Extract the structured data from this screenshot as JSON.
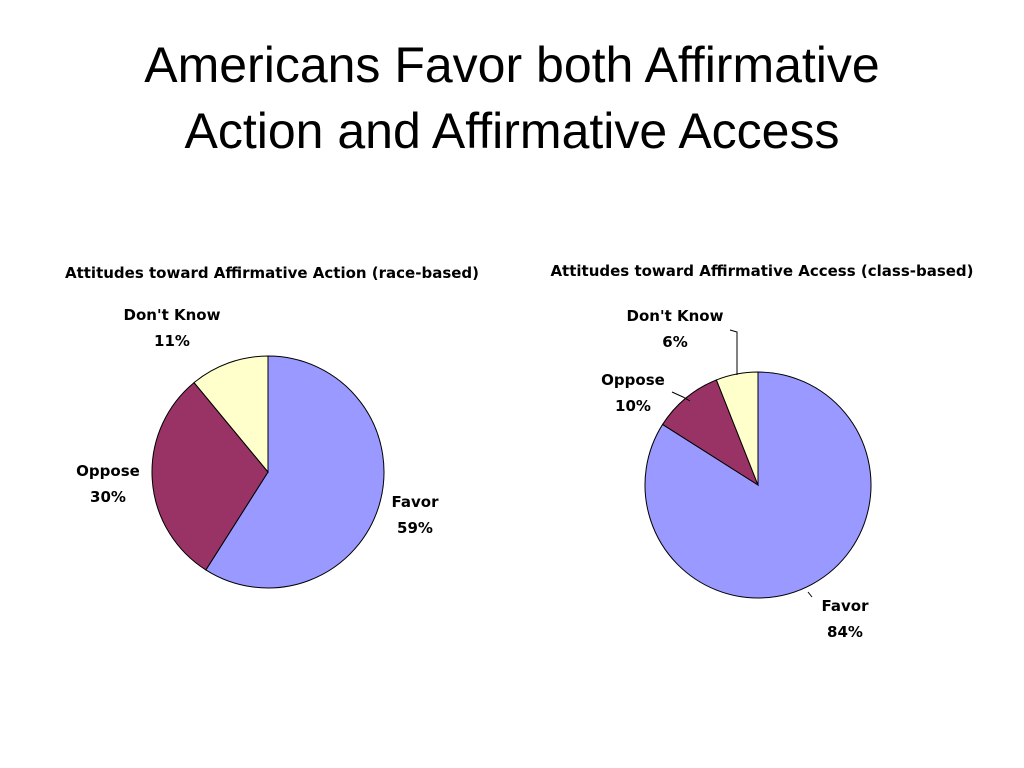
{
  "slide_title_lines": [
    "Americans Favor both Affirmative",
    "Action and Affirmative Access"
  ],
  "chart_data": [
    {
      "type": "pie",
      "title": "Attitudes toward Affirmative Action (race-based)",
      "categories": [
        "Favor",
        "Oppose",
        "Don't Know"
      ],
      "values": [
        59,
        30,
        11
      ],
      "value_labels": [
        "59%",
        "30%",
        "11%"
      ],
      "colors": [
        "#9999ff",
        "#993366",
        "#ffffcc"
      ]
    },
    {
      "type": "pie",
      "title": "Attitudes toward Affirmative Access (class-based)",
      "categories": [
        "Favor",
        "Oppose",
        "Don't Know"
      ],
      "values": [
        84,
        10,
        6
      ],
      "value_labels": [
        "84%",
        "10%",
        "6%"
      ],
      "colors": [
        "#9999ff",
        "#993366",
        "#ffffcc"
      ]
    }
  ]
}
